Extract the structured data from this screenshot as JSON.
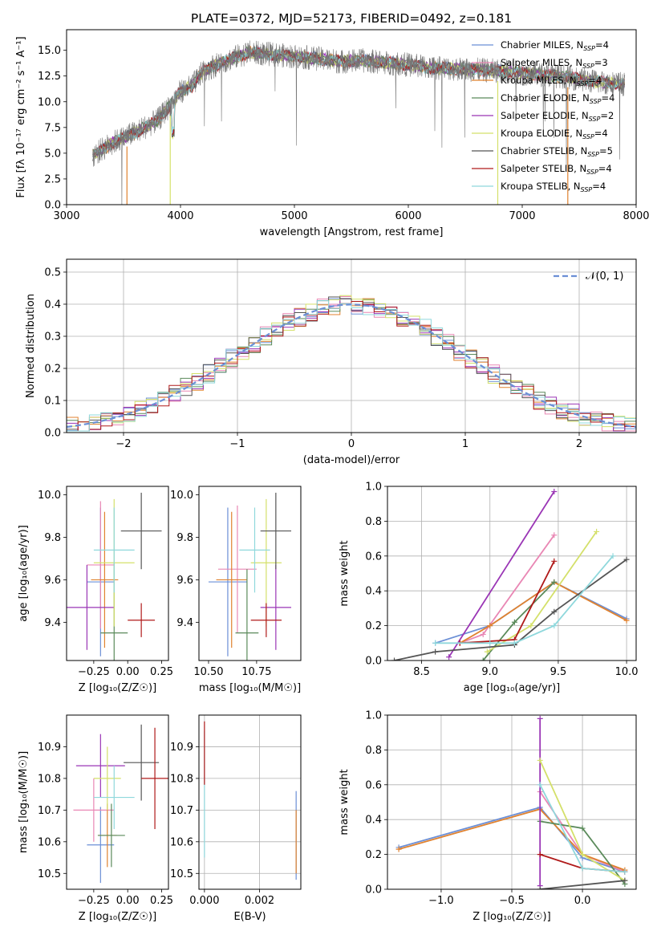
{
  "colors": {
    "Chabrier MILES": "#6b8fd6",
    "Salpeter MILES": "#e987b4",
    "Kroupa MILES": "#e0822f",
    "Chabrier ELODIE": "#5a8a5a",
    "Salpeter ELODIE": "#9a35b5",
    "Kroupa ELODIE": "#d4e06a",
    "Chabrier STELIB": "#555555",
    "Salpeter STELIB": "#b01a1a",
    "Kroupa STELIB": "#8fd8dc",
    "gauss": "#6b8fd6",
    "spectrum": "#777777"
  },
  "chart_data": [
    {
      "id": "spectrum",
      "type": "line",
      "title": "PLATE=0372, MJD=52173, FIBERID=0492, z=0.181",
      "xlabel": "wavelength [Angstrom, rest frame]",
      "ylabel": "Flux [fλ 10⁻¹⁷ erg cm⁻² s⁻¹ A⁻¹]",
      "xlim": [
        3000,
        8000
      ],
      "ylim": [
        0,
        17
      ],
      "xticks": [
        "3000",
        "4000",
        "5000",
        "6000",
        "7000",
        "8000"
      ],
      "yticks": [
        "0.0",
        "2.5",
        "5.0",
        "7.5",
        "10.0",
        "12.5",
        "15.0"
      ],
      "xtick_values": [
        3000,
        4000,
        5000,
        6000,
        7000,
        8000
      ],
      "ytick_values": [
        0,
        2.5,
        5,
        7.5,
        10,
        12.5,
        15
      ],
      "legend_placement": "top-right",
      "legend": [
        {
          "label": "Chabrier MILES, N",
          "sub": "SSP",
          "suffix": "=4"
        },
        {
          "label": "Salpeter MILES, N",
          "sub": "SSP",
          "suffix": "=3"
        },
        {
          "label": "Kroupa MILES, N",
          "sub": "SSP",
          "suffix": "=4"
        },
        {
          "label": "Chabrier ELODIE, N",
          "sub": "SSP",
          "suffix": "=4"
        },
        {
          "label": "Salpeter ELODIE, N",
          "sub": "SSP",
          "suffix": "=2"
        },
        {
          "label": "Kroupa ELODIE, N",
          "sub": "SSP",
          "suffix": "=4"
        },
        {
          "label": "Chabrier STELIB, N",
          "sub": "SSP",
          "suffix": "=5"
        },
        {
          "label": "Salpeter STELIB, N",
          "sub": "SSP",
          "suffix": "=4"
        },
        {
          "label": "Kroupa STELIB, N",
          "sub": "SSP",
          "suffix": "=4"
        }
      ],
      "x": [
        3230,
        3400,
        3600,
        3800,
        3900,
        4000,
        4100,
        4200,
        4400,
        4600,
        4800,
        5000,
        5200,
        5400,
        5600,
        5800,
        6000,
        6200,
        6400,
        6600,
        6800,
        7000,
        7200,
        7400,
        7600,
        7800,
        7900
      ],
      "y": [
        4.8,
        6.0,
        7.0,
        8.2,
        9.5,
        11.0,
        11.5,
        13.0,
        14.0,
        14.8,
        14.6,
        14.4,
        14.2,
        13.9,
        14.0,
        13.8,
        13.6,
        13.3,
        13.2,
        13.1,
        13.0,
        12.8,
        12.6,
        12.4,
        12.0,
        11.8,
        11.7
      ]
    },
    {
      "id": "residuals",
      "type": "histogram",
      "xlabel": "(data-model)/error",
      "ylabel": "Normed distribution",
      "xlim": [
        -2.5,
        2.5
      ],
      "ylim": [
        0,
        0.54
      ],
      "xticks": [
        "−2",
        "−1",
        "0",
        "1",
        "2"
      ],
      "yticks": [
        "0.0",
        "0.1",
        "0.2",
        "0.3",
        "0.4",
        "0.5"
      ],
      "xtick_values": [
        -2,
        -1,
        0,
        1,
        2
      ],
      "ytick_values": [
        0,
        0.1,
        0.2,
        0.3,
        0.4,
        0.5
      ],
      "legend_placement": "top-right",
      "legend": [
        {
          "label": "𝒩(0, 1)"
        }
      ],
      "bin_edges_start": -2.5,
      "bin_width": 0.1
    },
    {
      "id": "age_vs_z",
      "type": "scatter",
      "xlabel": "Z [log₁₀(Z/Z☉)]",
      "ylabel": "age [log₁₀(age/yr)]",
      "xlim": [
        -0.45,
        0.3
      ],
      "ylim": [
        9.22,
        10.04
      ],
      "xticks": [
        "−0.25",
        "0.00",
        "0.25"
      ],
      "yticks": [
        "9.4",
        "9.6",
        "9.8",
        "10.0"
      ],
      "xtick_values": [
        -0.25,
        0,
        0.25
      ],
      "ytick_values": [
        9.4,
        9.6,
        9.8,
        10.0
      ],
      "grid": false,
      "points": [
        {
          "series": "Chabrier MILES",
          "x": -0.2,
          "xerr": 0.1,
          "y": 9.59,
          "yerr": 0.35
        },
        {
          "series": "Salpeter MILES",
          "x": -0.2,
          "xerr": 0.1,
          "y": 9.67,
          "yerr": 0.3
        },
        {
          "series": "Kroupa MILES",
          "x": -0.17,
          "xerr": 0.1,
          "y": 9.6,
          "yerr": 0.32
        },
        {
          "series": "Chabrier ELODIE",
          "x": -0.1,
          "xerr": 0.1,
          "y": 9.35,
          "yerr": 0.33
        },
        {
          "series": "Salpeter ELODIE",
          "x": -0.3,
          "xerr": 0.2,
          "y": 9.47,
          "yerr": 0.2
        },
        {
          "series": "Kroupa ELODIE",
          "x": -0.1,
          "xerr": 0.15,
          "y": 9.68,
          "yerr": 0.3
        },
        {
          "series": "Chabrier STELIB",
          "x": 0.1,
          "xerr": 0.15,
          "y": 9.83,
          "yerr": 0.18
        },
        {
          "series": "Salpeter STELIB",
          "x": 0.1,
          "xerr": 0.1,
          "y": 9.41,
          "yerr": 0.08
        },
        {
          "series": "Kroupa STELIB",
          "x": -0.1,
          "xerr": 0.15,
          "y": 9.74,
          "yerr": 0.2
        }
      ]
    },
    {
      "id": "age_vs_mass",
      "type": "scatter",
      "xlabel": "mass [log₁₀(M/M☉)]",
      "ylabel": "",
      "xlim": [
        10.45,
        10.98
      ],
      "ylim": [
        9.22,
        10.04
      ],
      "xticks": [
        "10.50",
        "10.75"
      ],
      "yticks": [
        "9.4",
        "9.6",
        "9.8",
        "10.0"
      ],
      "xtick_values": [
        10.5,
        10.75
      ],
      "ytick_values": [
        9.4,
        9.6,
        9.8,
        10.0
      ],
      "grid": false,
      "points": [
        {
          "series": "Chabrier MILES",
          "x": 10.6,
          "xerr": 0.1,
          "y": 9.59,
          "yerr": 0.35
        },
        {
          "series": "Salpeter MILES",
          "x": 10.65,
          "xerr": 0.1,
          "y": 9.65,
          "yerr": 0.3
        },
        {
          "series": "Kroupa MILES",
          "x": 10.62,
          "xerr": 0.08,
          "y": 9.6,
          "yerr": 0.32
        },
        {
          "series": "Chabrier ELODIE",
          "x": 10.7,
          "xerr": 0.06,
          "y": 9.35,
          "yerr": 0.3
        },
        {
          "series": "Salpeter ELODIE",
          "x": 10.85,
          "xerr": 0.08,
          "y": 9.47,
          "yerr": 0.2
        },
        {
          "series": "Kroupa ELODIE",
          "x": 10.8,
          "xerr": 0.08,
          "y": 9.68,
          "yerr": 0.3
        },
        {
          "series": "Chabrier STELIB",
          "x": 10.85,
          "xerr": 0.08,
          "y": 9.83,
          "yerr": 0.18
        },
        {
          "series": "Salpeter STELIB",
          "x": 10.8,
          "xerr": 0.08,
          "y": 9.41,
          "yerr": 0.08
        },
        {
          "series": "Kroupa STELIB",
          "x": 10.74,
          "xerr": 0.08,
          "y": 9.74,
          "yerr": 0.2
        }
      ]
    },
    {
      "id": "massweight_vs_age",
      "type": "line",
      "xlabel": "age [log₁₀(age/yr)]",
      "ylabel": "mass weight",
      "xlim": [
        8.25,
        10.07
      ],
      "ylim": [
        0,
        1.0
      ],
      "xticks": [
        "8.5",
        "9.0",
        "9.5",
        "10.0"
      ],
      "yticks": [
        "0.0",
        "0.2",
        "0.4",
        "0.6",
        "0.8",
        "1.0"
      ],
      "xtick_values": [
        8.5,
        9.0,
        9.5,
        10.0
      ],
      "ytick_values": [
        0,
        0.2,
        0.4,
        0.6,
        0.8,
        1.0
      ],
      "grid": true,
      "series": [
        {
          "name": "Chabrier MILES",
          "x": [
            8.6,
            9.0,
            9.47,
            10.0
          ],
          "y": [
            0.1,
            0.2,
            0.45,
            0.24
          ]
        },
        {
          "name": "Salpeter MILES",
          "x": [
            8.78,
            8.95,
            9.47
          ],
          "y": [
            0.1,
            0.15,
            0.72
          ]
        },
        {
          "name": "Kroupa MILES",
          "x": [
            8.78,
            9.0,
            9.47,
            10.0
          ],
          "y": [
            0.1,
            0.2,
            0.45,
            0.23
          ]
        },
        {
          "name": "Chabrier ELODIE",
          "x": [
            8.95,
            9.18,
            9.47
          ],
          "y": [
            0.0,
            0.22,
            0.45
          ]
        },
        {
          "name": "Salpeter ELODIE",
          "x": [
            8.7,
            9.47
          ],
          "y": [
            0.02,
            0.97
          ]
        },
        {
          "name": "Kroupa ELODIE",
          "x": [
            8.98,
            9.3,
            9.78
          ],
          "y": [
            0.05,
            0.2,
            0.74
          ]
        },
        {
          "name": "Chabrier STELIB",
          "x": [
            8.3,
            8.6,
            9.18,
            9.47,
            10.0
          ],
          "y": [
            0.0,
            0.05,
            0.09,
            0.28,
            0.58
          ]
        },
        {
          "name": "Salpeter STELIB",
          "x": [
            8.78,
            9.18,
            9.47
          ],
          "y": [
            0.1,
            0.12,
            0.57
          ]
        },
        {
          "name": "Kroupa STELIB",
          "x": [
            8.6,
            9.0,
            9.18,
            9.47,
            9.9
          ],
          "y": [
            0.1,
            0.1,
            0.1,
            0.2,
            0.6
          ]
        }
      ]
    },
    {
      "id": "mass_vs_z",
      "type": "scatter",
      "xlabel": "Z [log₁₀(Z/Z☉)]",
      "ylabel": "mass [log₁₀(M/M☉)]",
      "xlim": [
        -0.45,
        0.3
      ],
      "ylim": [
        10.45,
        11.0
      ],
      "xticks": [
        "−0.25",
        "0.00",
        "0.25"
      ],
      "yticks": [
        "10.5",
        "10.6",
        "10.7",
        "10.8",
        "10.9"
      ],
      "xtick_values": [
        -0.25,
        0,
        0.25
      ],
      "ytick_values": [
        10.5,
        10.6,
        10.7,
        10.8,
        10.9
      ],
      "grid": false,
      "points": [
        {
          "series": "Chabrier MILES",
          "x": -0.2,
          "xerr": 0.1,
          "y": 10.59,
          "yerr": 0.12
        },
        {
          "series": "Salpeter MILES",
          "x": -0.25,
          "xerr": 0.15,
          "y": 10.7,
          "yerr": 0.1
        },
        {
          "series": "Kroupa MILES",
          "x": -0.15,
          "xerr": 0.07,
          "y": 10.62,
          "yerr": 0.1
        },
        {
          "series": "Chabrier ELODIE",
          "x": -0.12,
          "xerr": 0.1,
          "y": 10.62,
          "yerr": 0.1
        },
        {
          "series": "Salpeter ELODIE",
          "x": -0.2,
          "xerr": 0.18,
          "y": 10.84,
          "yerr": 0.1
        },
        {
          "series": "Kroupa ELODIE",
          "x": -0.15,
          "xerr": 0.1,
          "y": 10.8,
          "yerr": 0.1
        },
        {
          "series": "Chabrier STELIB",
          "x": 0.1,
          "xerr": 0.13,
          "y": 10.85,
          "yerr": 0.12
        },
        {
          "series": "Salpeter STELIB",
          "x": 0.2,
          "xerr": 0.1,
          "y": 10.8,
          "yerr": 0.16
        },
        {
          "series": "Kroupa STELIB",
          "x": -0.1,
          "xerr": 0.15,
          "y": 10.74,
          "yerr": 0.1
        }
      ]
    },
    {
      "id": "mass_vs_ebv",
      "type": "scatter",
      "xlabel": "E(B-V)",
      "ylabel": "",
      "xlim": [
        -0.0002,
        0.0035
      ],
      "ylim": [
        10.45,
        11.0
      ],
      "xticks": [
        "0.000",
        "0.002"
      ],
      "yticks": [
        "10.5",
        "10.6",
        "10.7",
        "10.8",
        "10.9"
      ],
      "xtick_values": [
        0,
        0.002
      ],
      "ytick_values": [
        10.5,
        10.6,
        10.7,
        10.8,
        10.9
      ],
      "grid": true,
      "points": [
        {
          "series": "Kroupa STELIB",
          "x": 0.0,
          "xerr": 0,
          "y": 10.75,
          "yerr": 0.2
        },
        {
          "series": "Salpeter STELIB",
          "x": 0.0,
          "xerr": 0,
          "y": 10.88,
          "yerr": 0.1
        },
        {
          "series": "Chabrier MILES",
          "x": 0.00333,
          "xerr": 0,
          "y": 10.62,
          "yerr": 0.14
        },
        {
          "series": "Kroupa MILES",
          "x": 0.00333,
          "xerr": 0,
          "y": 10.6,
          "yerr": 0.1
        }
      ]
    },
    {
      "id": "massweight_vs_z",
      "type": "line",
      "xlabel": "Z [log₁₀(Z/Z☉)]",
      "ylabel": "mass weight",
      "xlim": [
        -1.38,
        0.38
      ],
      "ylim": [
        0,
        1.0
      ],
      "xticks": [
        "−1.0",
        "−0.5",
        "0.0"
      ],
      "yticks": [
        "0.0",
        "0.2",
        "0.4",
        "0.6",
        "0.8",
        "1.0"
      ],
      "xtick_values": [
        -1.0,
        -0.5,
        0.0
      ],
      "ytick_values": [
        0,
        0.2,
        0.4,
        0.6,
        0.8,
        1.0
      ],
      "grid": true,
      "series": [
        {
          "name": "Chabrier MILES",
          "x": [
            -1.3,
            -0.3,
            0.0,
            0.3
          ],
          "y": [
            0.24,
            0.47,
            0.18,
            0.1
          ]
        },
        {
          "name": "Salpeter MILES",
          "x": [
            -0.3,
            0.0,
            0.3
          ],
          "y": [
            0.56,
            0.2,
            0.1
          ]
        },
        {
          "name": "Kroupa MILES",
          "x": [
            -1.3,
            -0.3,
            0.0,
            0.3
          ],
          "y": [
            0.23,
            0.46,
            0.2,
            0.11
          ]
        },
        {
          "name": "Chabrier ELODIE",
          "x": [
            -0.3,
            0.0,
            0.3
          ],
          "y": [
            0.39,
            0.35,
            0.03
          ]
        },
        {
          "name": "Salpeter ELODIE",
          "x": [
            -0.3,
            -0.3
          ],
          "y": [
            0.02,
            0.98
          ]
        },
        {
          "name": "Kroupa ELODIE",
          "x": [
            -0.3,
            0.0,
            0.3
          ],
          "y": [
            0.74,
            0.2,
            0.05
          ]
        },
        {
          "name": "Chabrier STELIB",
          "x": [
            -0.3,
            0.3
          ],
          "y": [
            0.0,
            0.05
          ]
        },
        {
          "name": "Salpeter STELIB",
          "x": [
            -0.3,
            0.0,
            0.3
          ],
          "y": [
            0.2,
            0.12,
            0.1
          ]
        },
        {
          "name": "Kroupa STELIB",
          "x": [
            -0.3,
            0.0,
            0.3
          ],
          "y": [
            0.6,
            0.12,
            0.1
          ]
        }
      ]
    }
  ]
}
